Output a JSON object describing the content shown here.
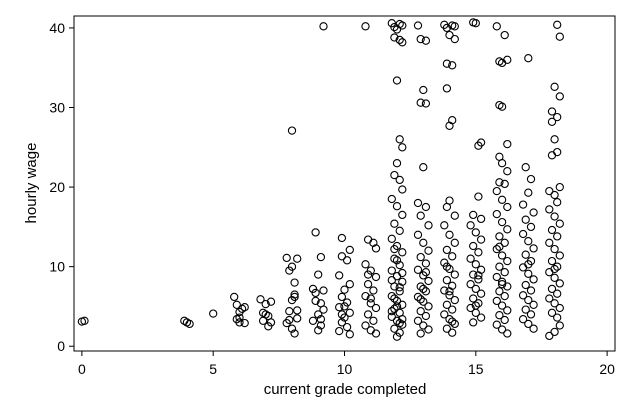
{
  "chart_data": {
    "type": "scatter",
    "title": "",
    "xlabel": "current grade completed",
    "ylabel": "hourly wage",
    "xlim": [
      -0.3,
      20.3
    ],
    "ylim": [
      -0.6,
      41.5
    ],
    "xticks": [
      0,
      5,
      10,
      15,
      20
    ],
    "yticks": [
      0,
      10,
      20,
      30,
      40
    ],
    "grid": false,
    "legend": "none",
    "marker": "hollow-circle",
    "marker_color": "#000000",
    "points": [
      [
        0.0,
        3.1
      ],
      [
        0.1,
        3.2
      ],
      [
        3.9,
        3.2
      ],
      [
        4.0,
        3.0
      ],
      [
        4.1,
        2.8
      ],
      [
        5.0,
        4.1
      ],
      [
        5.8,
        6.2
      ],
      [
        5.9,
        5.2
      ],
      [
        6.0,
        4.3
      ],
      [
        6.1,
        4.7
      ],
      [
        6.2,
        4.9
      ],
      [
        5.9,
        3.4
      ],
      [
        6.0,
        3.0
      ],
      [
        6.2,
        2.9
      ],
      [
        6.0,
        3.6
      ],
      [
        6.8,
        5.9
      ],
      [
        6.9,
        4.2
      ],
      [
        7.0,
        5.3
      ],
      [
        7.1,
        3.8
      ],
      [
        7.2,
        3.0
      ],
      [
        6.9,
        3.2
      ],
      [
        7.1,
        2.5
      ],
      [
        7.0,
        4.0
      ],
      [
        7.2,
        5.6
      ],
      [
        7.8,
        11.1
      ],
      [
        8.0,
        10.0
      ],
      [
        8.2,
        11.0
      ],
      [
        7.9,
        9.5
      ],
      [
        8.1,
        8.0
      ],
      [
        8.0,
        27.1
      ],
      [
        8.1,
        6.2
      ],
      [
        7.9,
        4.4
      ],
      [
        8.2,
        3.5
      ],
      [
        7.8,
        2.9
      ],
      [
        8.0,
        2.2
      ],
      [
        8.1,
        1.6
      ],
      [
        7.9,
        3.3
      ],
      [
        8.2,
        4.5
      ],
      [
        8.0,
        5.8
      ],
      [
        8.1,
        6.5
      ],
      [
        9.2,
        40.2
      ],
      [
        8.9,
        14.3
      ],
      [
        9.1,
        11.2
      ],
      [
        9.0,
        9.0
      ],
      [
        8.8,
        7.2
      ],
      [
        8.9,
        6.7
      ],
      [
        9.1,
        5.4
      ],
      [
        9.2,
        4.6
      ],
      [
        9.0,
        4.0
      ],
      [
        8.8,
        3.2
      ],
      [
        9.1,
        2.6
      ],
      [
        9.0,
        2.0
      ],
      [
        9.2,
        7.0
      ],
      [
        8.9,
        5.7
      ],
      [
        9.1,
        3.4
      ],
      [
        9.9,
        13.6
      ],
      [
        10.2,
        12.1
      ],
      [
        9.9,
        11.3
      ],
      [
        10.1,
        10.8
      ],
      [
        9.8,
        8.9
      ],
      [
        10.2,
        7.8
      ],
      [
        10.0,
        7.1
      ],
      [
        9.9,
        6.2
      ],
      [
        10.1,
        5.5
      ],
      [
        9.8,
        4.9
      ],
      [
        10.2,
        4.2
      ],
      [
        10.0,
        3.6
      ],
      [
        9.9,
        3.0
      ],
      [
        10.1,
        2.4
      ],
      [
        9.8,
        1.9
      ],
      [
        10.2,
        1.5
      ],
      [
        10.0,
        5.0
      ],
      [
        9.9,
        4.0
      ],
      [
        10.8,
        40.2
      ],
      [
        10.9,
        13.4
      ],
      [
        11.1,
        13.0
      ],
      [
        11.2,
        12.3
      ],
      [
        10.8,
        10.3
      ],
      [
        11.0,
        9.5
      ],
      [
        11.2,
        8.7
      ],
      [
        10.9,
        7.8
      ],
      [
        11.1,
        7.0
      ],
      [
        10.8,
        6.3
      ],
      [
        11.0,
        5.4
      ],
      [
        11.2,
        4.8
      ],
      [
        10.9,
        4.0
      ],
      [
        11.1,
        3.2
      ],
      [
        10.8,
        2.6
      ],
      [
        11.0,
        2.0
      ],
      [
        11.2,
        1.6
      ],
      [
        11.0,
        6.0
      ],
      [
        10.9,
        9.0
      ],
      [
        11.8,
        40.6
      ],
      [
        11.9,
        40.1
      ],
      [
        12.0,
        39.8
      ],
      [
        12.1,
        40.5
      ],
      [
        12.2,
        40.3
      ],
      [
        11.9,
        38.8
      ],
      [
        12.1,
        38.5
      ],
      [
        12.2,
        38.2
      ],
      [
        12.0,
        33.4
      ],
      [
        12.1,
        26.0
      ],
      [
        12.2,
        25.0
      ],
      [
        12.0,
        23.0
      ],
      [
        11.9,
        21.5
      ],
      [
        12.1,
        20.9
      ],
      [
        12.2,
        19.7
      ],
      [
        11.8,
        18.5
      ],
      [
        12.0,
        17.6
      ],
      [
        12.2,
        16.5
      ],
      [
        11.9,
        15.4
      ],
      [
        12.1,
        14.5
      ],
      [
        11.8,
        13.5
      ],
      [
        12.0,
        12.6
      ],
      [
        12.2,
        11.8
      ],
      [
        11.9,
        11.0
      ],
      [
        12.1,
        10.2
      ],
      [
        11.8,
        9.5
      ],
      [
        12.0,
        8.8
      ],
      [
        12.2,
        8.1
      ],
      [
        11.9,
        7.5
      ],
      [
        12.1,
        6.9
      ],
      [
        11.8,
        6.3
      ],
      [
        12.0,
        5.7
      ],
      [
        12.2,
        5.2
      ],
      [
        11.9,
        4.7
      ],
      [
        12.1,
        4.2
      ],
      [
        11.8,
        3.7
      ],
      [
        12.0,
        3.2
      ],
      [
        12.2,
        2.7
      ],
      [
        11.9,
        2.2
      ],
      [
        12.1,
        1.7
      ],
      [
        12.0,
        1.2
      ],
      [
        11.8,
        8.3
      ],
      [
        12.2,
        9.2
      ],
      [
        11.9,
        6.0
      ],
      [
        12.1,
        7.4
      ],
      [
        12.0,
        5.0
      ],
      [
        11.8,
        4.4
      ],
      [
        12.2,
        3.4
      ],
      [
        12.0,
        10.8
      ],
      [
        11.9,
        12.2
      ],
      [
        12.1,
        2.9
      ],
      [
        12.8,
        40.3
      ],
      [
        12.9,
        38.6
      ],
      [
        13.1,
        38.4
      ],
      [
        13.0,
        32.2
      ],
      [
        12.9,
        30.6
      ],
      [
        13.1,
        30.5
      ],
      [
        13.0,
        22.5
      ],
      [
        12.8,
        18.0
      ],
      [
        13.1,
        17.5
      ],
      [
        12.9,
        16.4
      ],
      [
        13.2,
        15.2
      ],
      [
        12.8,
        14.0
      ],
      [
        13.0,
        13.0
      ],
      [
        13.2,
        12.0
      ],
      [
        12.9,
        11.2
      ],
      [
        13.1,
        10.4
      ],
      [
        12.8,
        9.6
      ],
      [
        13.0,
        8.9
      ],
      [
        13.2,
        8.2
      ],
      [
        12.9,
        7.5
      ],
      [
        13.1,
        6.9
      ],
      [
        12.8,
        6.2
      ],
      [
        13.0,
        5.6
      ],
      [
        13.2,
        5.0
      ],
      [
        12.9,
        4.4
      ],
      [
        13.1,
        3.8
      ],
      [
        12.8,
        3.2
      ],
      [
        13.0,
        2.6
      ],
      [
        13.2,
        2.1
      ],
      [
        12.9,
        1.6
      ],
      [
        13.0,
        7.2
      ],
      [
        13.1,
        9.3
      ],
      [
        12.9,
        5.9
      ],
      [
        13.8,
        40.4
      ],
      [
        13.9,
        40.0
      ],
      [
        14.1,
        40.3
      ],
      [
        14.2,
        40.2
      ],
      [
        14.0,
        39.1
      ],
      [
        14.2,
        38.6
      ],
      [
        13.9,
        35.5
      ],
      [
        14.1,
        35.3
      ],
      [
        13.9,
        32.4
      ],
      [
        14.1,
        28.4
      ],
      [
        14.0,
        27.7
      ],
      [
        14.0,
        18.3
      ],
      [
        13.9,
        17.5
      ],
      [
        14.2,
        16.4
      ],
      [
        13.8,
        15.2
      ],
      [
        14.0,
        14.0
      ],
      [
        14.2,
        13.0
      ],
      [
        13.9,
        12.1
      ],
      [
        14.1,
        11.3
      ],
      [
        13.8,
        10.5
      ],
      [
        14.0,
        9.7
      ],
      [
        14.2,
        9.0
      ],
      [
        13.9,
        8.3
      ],
      [
        14.1,
        7.6
      ],
      [
        13.8,
        7.0
      ],
      [
        14.0,
        6.4
      ],
      [
        14.2,
        5.8
      ],
      [
        13.9,
        5.2
      ],
      [
        14.1,
        4.6
      ],
      [
        13.8,
        4.0
      ],
      [
        14.0,
        3.4
      ],
      [
        14.2,
        2.8
      ],
      [
        13.9,
        2.2
      ],
      [
        14.1,
        1.7
      ],
      [
        14.0,
        6.9
      ],
      [
        13.9,
        10.0
      ],
      [
        14.1,
        3.1
      ],
      [
        14.9,
        40.7
      ],
      [
        15.0,
        40.6
      ],
      [
        15.2,
        25.6
      ],
      [
        15.1,
        25.2
      ],
      [
        15.1,
        18.8
      ],
      [
        14.9,
        16.5
      ],
      [
        15.2,
        16.0
      ],
      [
        14.8,
        15.2
      ],
      [
        15.0,
        14.3
      ],
      [
        15.2,
        13.4
      ],
      [
        14.9,
        12.6
      ],
      [
        15.1,
        11.8
      ],
      [
        14.8,
        11.0
      ],
      [
        15.0,
        10.3
      ],
      [
        15.2,
        9.6
      ],
      [
        14.9,
        9.0
      ],
      [
        15.1,
        8.4
      ],
      [
        14.8,
        7.8
      ],
      [
        15.0,
        7.2
      ],
      [
        15.2,
        6.6
      ],
      [
        14.9,
        6.0
      ],
      [
        15.1,
        5.4
      ],
      [
        14.8,
        4.8
      ],
      [
        15.0,
        4.2
      ],
      [
        15.2,
        3.6
      ],
      [
        14.9,
        3.0
      ],
      [
        15.1,
        8.9
      ],
      [
        15.0,
        5.1
      ],
      [
        15.8,
        40.2
      ],
      [
        16.1,
        39.1
      ],
      [
        15.9,
        35.8
      ],
      [
        16.0,
        35.6
      ],
      [
        16.2,
        36.0
      ],
      [
        15.9,
        30.3
      ],
      [
        16.0,
        30.1
      ],
      [
        16.2,
        25.4
      ],
      [
        15.9,
        23.8
      ],
      [
        16.0,
        23.0
      ],
      [
        16.2,
        22.0
      ],
      [
        15.9,
        20.6
      ],
      [
        16.1,
        20.4
      ],
      [
        15.8,
        19.5
      ],
      [
        16.0,
        18.4
      ],
      [
        16.2,
        17.5
      ],
      [
        15.8,
        16.6
      ],
      [
        16.0,
        15.6
      ],
      [
        16.2,
        14.7
      ],
      [
        15.9,
        13.8
      ],
      [
        16.1,
        13.0
      ],
      [
        15.8,
        12.2
      ],
      [
        16.0,
        11.4
      ],
      [
        16.2,
        10.7
      ],
      [
        15.9,
        10.0
      ],
      [
        16.1,
        9.3
      ],
      [
        15.8,
        8.7
      ],
      [
        16.0,
        8.1
      ],
      [
        16.2,
        7.5
      ],
      [
        15.9,
        6.9
      ],
      [
        16.1,
        6.3
      ],
      [
        15.8,
        5.7
      ],
      [
        16.0,
        5.1
      ],
      [
        16.2,
        4.5
      ],
      [
        15.9,
        3.9
      ],
      [
        16.1,
        3.3
      ],
      [
        15.8,
        2.7
      ],
      [
        16.0,
        2.1
      ],
      [
        16.2,
        1.6
      ],
      [
        16.0,
        7.8
      ],
      [
        15.9,
        12.5
      ],
      [
        17.0,
        36.2
      ],
      [
        16.9,
        22.5
      ],
      [
        17.1,
        21.0
      ],
      [
        17.0,
        19.3
      ],
      [
        16.8,
        17.8
      ],
      [
        17.2,
        16.8
      ],
      [
        16.9,
        15.9
      ],
      [
        17.1,
        15.0
      ],
      [
        16.8,
        14.1
      ],
      [
        17.0,
        13.2
      ],
      [
        17.2,
        12.3
      ],
      [
        16.9,
        11.5
      ],
      [
        17.1,
        10.7
      ],
      [
        16.8,
        9.9
      ],
      [
        17.0,
        9.1
      ],
      [
        17.2,
        8.4
      ],
      [
        16.9,
        7.7
      ],
      [
        17.1,
        7.0
      ],
      [
        16.8,
        6.4
      ],
      [
        17.0,
        5.8
      ],
      [
        17.2,
        5.2
      ],
      [
        16.9,
        4.6
      ],
      [
        17.1,
        4.0
      ],
      [
        16.8,
        3.4
      ],
      [
        17.0,
        2.8
      ],
      [
        17.2,
        2.2
      ],
      [
        17.0,
        10.3
      ],
      [
        18.1,
        40.4
      ],
      [
        18.2,
        38.9
      ],
      [
        18.0,
        32.6
      ],
      [
        18.2,
        31.4
      ],
      [
        17.9,
        29.5
      ],
      [
        18.1,
        28.8
      ],
      [
        17.9,
        28.2
      ],
      [
        18.0,
        26.0
      ],
      [
        18.1,
        24.4
      ],
      [
        17.9,
        24.0
      ],
      [
        18.2,
        20.0
      ],
      [
        17.8,
        19.5
      ],
      [
        18.0,
        19.0
      ],
      [
        18.1,
        18.1
      ],
      [
        17.8,
        17.2
      ],
      [
        18.0,
        16.3
      ],
      [
        18.2,
        15.4
      ],
      [
        17.9,
        14.6
      ],
      [
        18.1,
        13.8
      ],
      [
        17.8,
        13.0
      ],
      [
        18.0,
        12.2
      ],
      [
        18.2,
        11.4
      ],
      [
        17.9,
        10.7
      ],
      [
        18.1,
        10.0
      ],
      [
        17.8,
        9.3
      ],
      [
        18.0,
        8.6
      ],
      [
        18.2,
        7.9
      ],
      [
        17.9,
        7.2
      ],
      [
        18.1,
        6.6
      ],
      [
        17.8,
        6.0
      ],
      [
        18.0,
        5.4
      ],
      [
        18.2,
        4.8
      ],
      [
        17.9,
        4.2
      ],
      [
        18.1,
        3.6
      ],
      [
        17.8,
        1.3
      ],
      [
        18.0,
        1.8
      ],
      [
        18.2,
        2.6
      ],
      [
        18.0,
        9.7
      ]
    ]
  }
}
